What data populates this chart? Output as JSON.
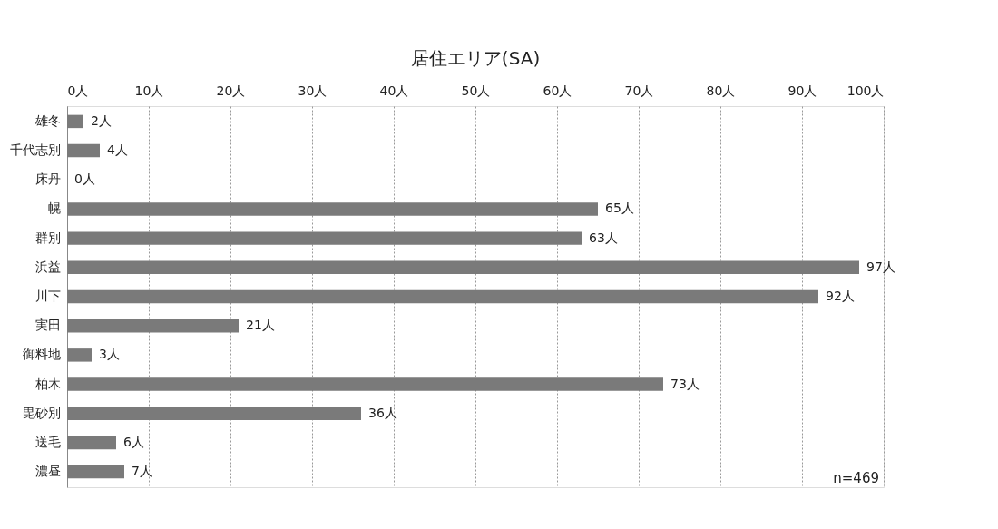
{
  "chart_data": {
    "type": "bar",
    "orientation": "horizontal",
    "title": "居住エリア(SA)",
    "categories": [
      "雄冬",
      "千代志別",
      "床丹",
      "幌",
      "群別",
      "浜益",
      "川下",
      "実田",
      "御料地",
      "柏木",
      "毘砂別",
      "送毛",
      "濃昼"
    ],
    "values": [
      2,
      4,
      0,
      65,
      63,
      97,
      92,
      21,
      3,
      73,
      36,
      6,
      7
    ],
    "value_labels": [
      "2人",
      "4人",
      "0人",
      "65人",
      "63人",
      "97人",
      "92人",
      "21人",
      "3人",
      "73人",
      "36人",
      "6人",
      "7人"
    ],
    "color": "#7a7a7a",
    "xlim": [
      0,
      100
    ],
    "xticks": [
      {
        "value": 0,
        "label": "0人"
      },
      {
        "value": 10,
        "label": "10人"
      },
      {
        "value": 20,
        "label": "20人"
      },
      {
        "value": 30,
        "label": "30人"
      },
      {
        "value": 40,
        "label": "40人"
      },
      {
        "value": 50,
        "label": "50人"
      },
      {
        "value": 60,
        "label": "60人"
      },
      {
        "value": 70,
        "label": "70人"
      },
      {
        "value": 80,
        "label": "80人"
      },
      {
        "value": 90,
        "label": "90人"
      },
      {
        "value": 100,
        "label": "100人"
      }
    ],
    "grid": "x",
    "annotations": [
      "n=469"
    ]
  }
}
